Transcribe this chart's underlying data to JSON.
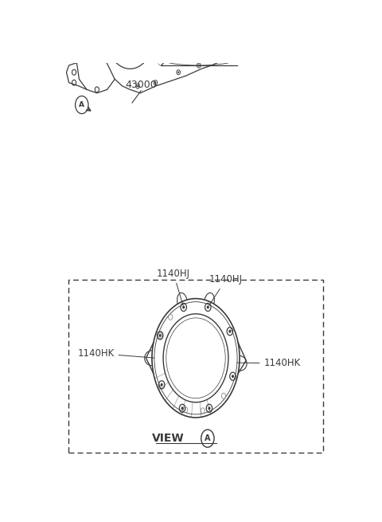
{
  "bg_color": "#ffffff",
  "fig_width": 4.8,
  "fig_height": 6.55,
  "dpi": 100,
  "line_color": "#3a3a3a",
  "light_line_color": "#888888",
  "label_43000": "43000",
  "label_1140HJ_1": "1140HJ",
  "label_1140HJ_2": "1140HJ",
  "label_1140HK_1": "1140HK",
  "label_1140HK_2": "1140HK",
  "label_view": "VIEW",
  "label_A": "A",
  "font_size_label": 8.5,
  "font_size_part": 9,
  "font_size_view": 10
}
